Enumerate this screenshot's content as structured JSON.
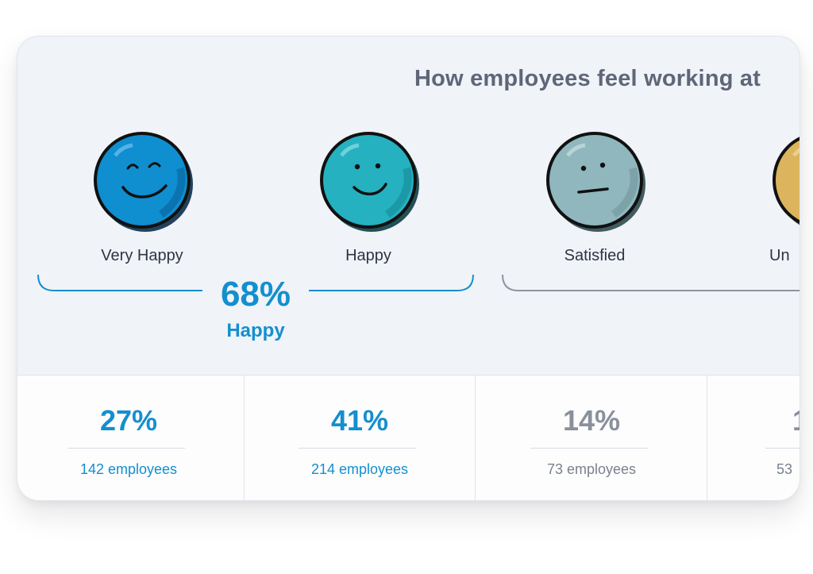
{
  "title": "How employees feel working at",
  "moods": [
    {
      "label": "Very Happy",
      "icon": "very-happy-face-icon",
      "color": "#0f8ed0"
    },
    {
      "label": "Happy",
      "icon": "happy-face-icon",
      "color": "#25b1c0"
    },
    {
      "label": "Satisfied",
      "icon": "satisfied-face-icon",
      "color": "#8fb7bd"
    },
    {
      "label": "Un",
      "icon": "unhappy-face-icon",
      "color": "#dcb45e"
    }
  ],
  "groups": [
    {
      "percent": "68%",
      "label": "Happy",
      "color": "#148fce"
    }
  ],
  "stats": [
    {
      "percent": "27%",
      "employees": "142 employees"
    },
    {
      "percent": "41%",
      "employees": "214 employees"
    },
    {
      "percent": "14%",
      "employees": "73 employees"
    },
    {
      "percent": "1",
      "employees": "53"
    }
  ],
  "colors": {
    "accent": "#148fce",
    "muted": "#8a909c",
    "card_bg": "#f0f3f8"
  }
}
